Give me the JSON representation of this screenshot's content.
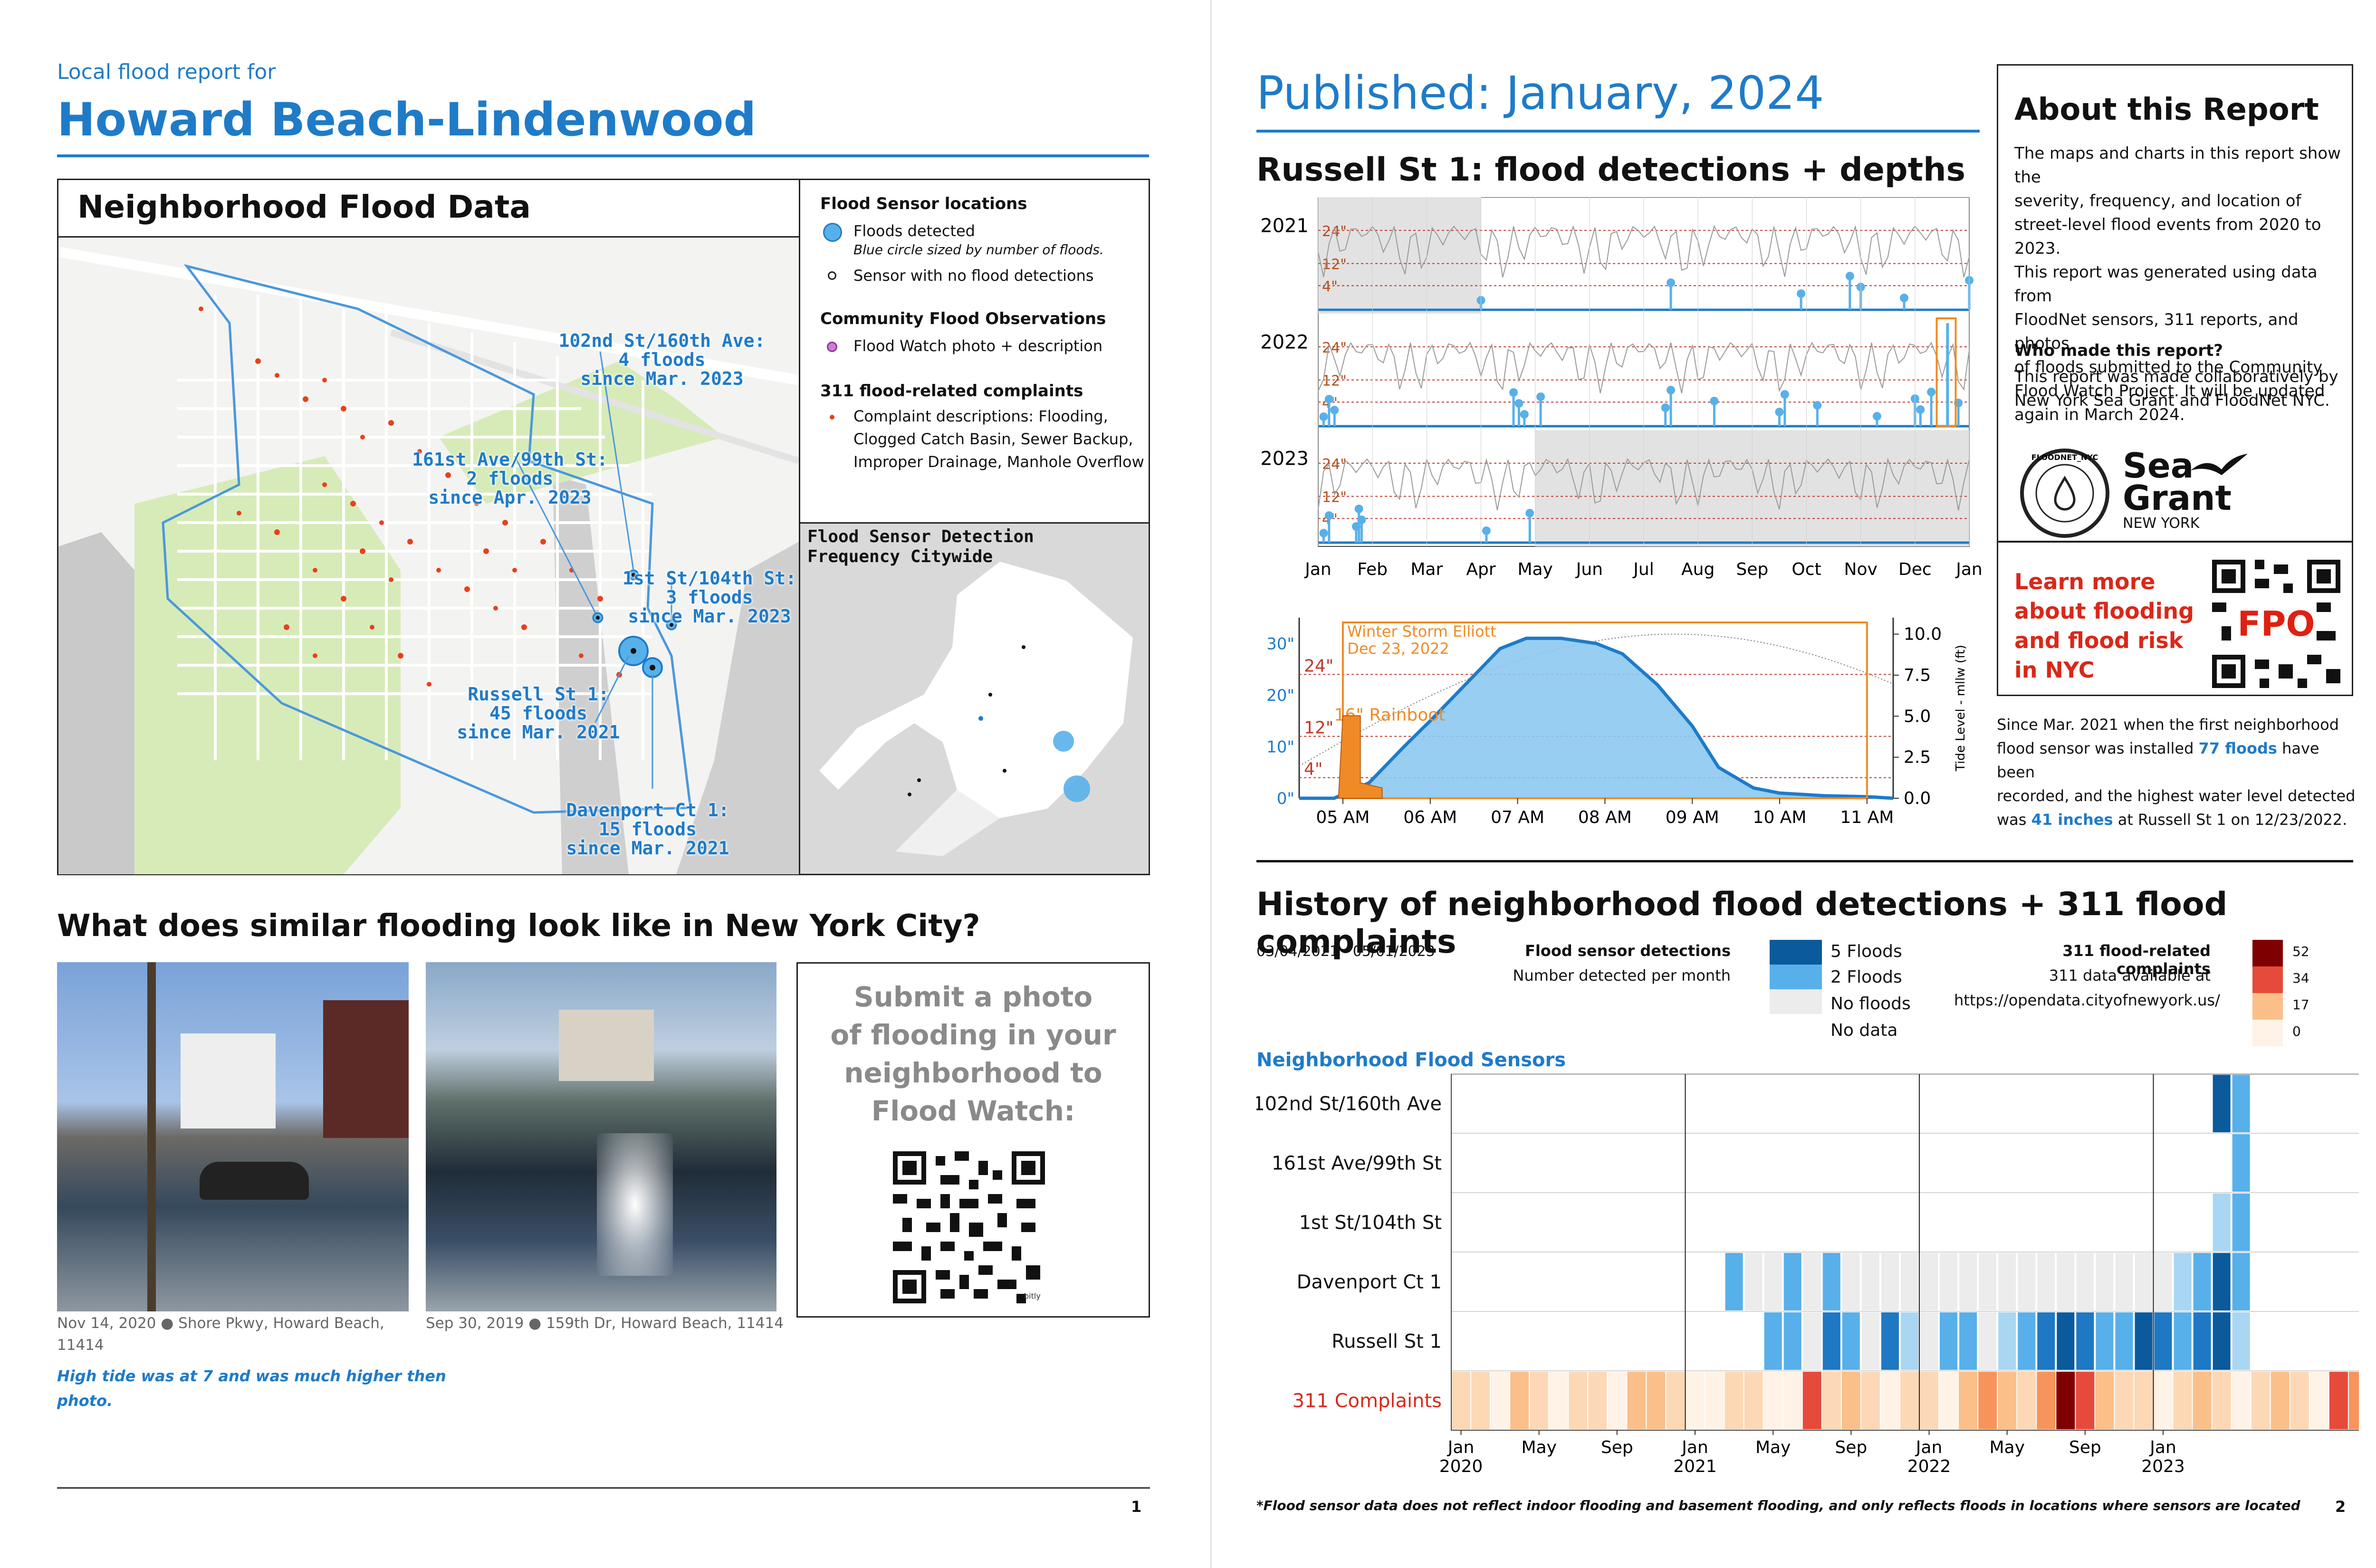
{
  "page1": {
    "kicker": "Local flood report for",
    "title": "Howard Beach-Lindenwood",
    "map_panel_title": "Neighborhood Flood Data",
    "legend": {
      "sensor_heading": "Flood Sensor locations",
      "floods_detected": "Floods detected",
      "floods_note": "Blue circle sized by number of floods.",
      "no_detections": "Sensor with no flood detections",
      "community_heading": "Community Flood Observations",
      "flood_watch": "Flood Watch photo + description",
      "complaints_heading": "311 flood-related complaints",
      "complaints_desc_1": "Complaint descriptions: Flooding,",
      "complaints_desc_2": "Clogged Catch Basin, Sewer Backup,",
      "complaints_desc_3": "Improper Drainage, Manhole Overflow"
    },
    "inset_title_1": "Flood Sensor Detection",
    "inset_title_2": "Frequency Citywide",
    "map_labels": [
      {
        "l1": "102nd St/160th Ave:",
        "l2": "4 floods",
        "l3": "since Mar. 2023"
      },
      {
        "l1": "161st Ave/99th St:",
        "l2": "2 floods",
        "l3": "since Apr. 2023"
      },
      {
        "l1": "1st St/104th St:",
        "l2": "3 floods",
        "l3": "since Mar. 2023"
      },
      {
        "l1": "Russell St 1:",
        "l2": "45 floods",
        "l3": "since Mar. 2021"
      },
      {
        "l1": "Davenport Ct 1:",
        "l2": "15 floods",
        "l3": "since Mar. 2021"
      }
    ],
    "similar_heading": "What does similar flooding look like in New York City?",
    "photo1_caption_1": "Nov 14, 2020 ● Shore Pkwy, Howard Beach,",
    "photo1_caption_2": "11414",
    "photo1_note_1": "High tide was at 7 and was much higher then",
    "photo1_note_2": "photo.",
    "photo2_caption": "Sep 30, 2019 ● 159th Dr, Howard Beach, 11414",
    "submit_1": "Submit a photo",
    "submit_2": "of flooding in your",
    "submit_3": "neighborhood to",
    "submit_4": "Flood Watch:",
    "qr_tag": "bitly",
    "page_number": "1"
  },
  "page2": {
    "published": "Published: January, 2024",
    "sensor_chart_title": "Russell St 1: flood detections + depths",
    "about_title": "About this Report",
    "about_text": [
      "The maps and charts in this report show the",
      "severity, frequency, and location of",
      "street-level flood events from 2020 to 2023.",
      "This report was generated using data from",
      "FloodNet sensors, 311 reports, and photos",
      "of floods submitted to the Community",
      "Flood Watch Project. It will be updated",
      "again in March 2024."
    ],
    "who_heading": "Who made this report?",
    "who_text_1": "This report was made collaboratively by",
    "who_text_2": "New York Sea Grant and FloodNet NYC.",
    "floodnet_logo": "FLOODNET_NYC",
    "seagrant_1": "Sea",
    "seagrant_2": "Grant",
    "seagrant_3": "NEW YORK",
    "learn_1": "Learn more",
    "learn_2": "about flooding",
    "learn_3": "and flood risk",
    "learn_4": "in NYC",
    "fpo": "FPO",
    "since_text": [
      {
        "pre": "Since Mar. 2021 when the first neighborhood",
        "hl": "",
        "post": ""
      },
      {
        "pre": "flood sensor was installed ",
        "hl": "77 floods",
        "post": " have been"
      },
      {
        "pre": "recorded, and the highest water level detected",
        "hl": "",
        "post": ""
      },
      {
        "pre": "was ",
        "hl": "41 inches",
        "post": " at Russell St 1 on 12/23/2022."
      }
    ],
    "history_title": "History of neighborhood flood detections + 311 flood complaints",
    "date_range": "03/04/2021 - 05/01/2023",
    "sensor_legend_heading": "Flood sensor detections",
    "sensor_legend_sub": "Number detected per month",
    "sensor_legend_items": [
      "5 Floods",
      "2 Floods",
      "No floods",
      "No data"
    ],
    "complaint_legend_heading": "311 flood-related complaints",
    "complaint_legend_sub_1": "311 data available at",
    "complaint_legend_sub_2": "https://opendata.cityofnewyork.us/",
    "complaint_legend_values": [
      "52",
      "34",
      "17",
      "0"
    ],
    "sensors_subheading": "Neighborhood Flood Sensors",
    "footnote": "*Flood sensor data does not reflect indoor flooding and basement flooding, and only reflects floods in locations where sensors are located",
    "page_number": "2"
  },
  "colors": {
    "brand_blue": "#1f7bc8",
    "flood_red": "#e8401c",
    "sensor_dark": "#0a5a9c",
    "sensor_light": "#58b0ea",
    "no_floods": "#ececec",
    "complaint_max": "#7f0000",
    "storm_orange": "#f08a24"
  },
  "chart_data": [
    {
      "type": "line",
      "title": "Russell St 1: flood detections + depths",
      "rows": [
        "2021",
        "2022",
        "2023"
      ],
      "x_tick_labels": [
        "Jan",
        "Feb",
        "Mar",
        "Apr",
        "May",
        "Jun",
        "Jul",
        "Aug",
        "Sep",
        "Oct",
        "Nov",
        "Dec",
        "Jan"
      ],
      "depth_guides": [
        "24\"",
        "12\"",
        "4\""
      ],
      "no_data_spans": [
        {
          "row": "2021",
          "from_month": 0,
          "to_month": 3
        },
        {
          "row": "2023",
          "from_month": 4,
          "to_month": 12
        }
      ],
      "flood_events_months": {
        "2021": [
          3.0,
          6.5,
          8.9,
          9.8,
          10.0,
          10.8,
          12.0
        ],
        "2022": [
          0.1,
          0.2,
          0.3,
          3.6,
          3.7,
          3.8,
          4.1,
          6.4,
          6.5,
          7.3,
          8.5,
          8.6,
          9.2,
          10.3,
          11.0,
          11.1,
          11.3,
          11.8
        ],
        "2023": [
          0.1,
          0.2,
          0.7,
          0.75,
          0.8,
          3.1,
          3.9
        ]
      }
    },
    {
      "type": "area",
      "title": "",
      "annotation_1": "Winter Storm Elliott",
      "annotation_2": "Dec 23, 2022",
      "rainboot_label": "16\" Rainboot",
      "x_tick_labels": [
        "05 AM",
        "06 AM",
        "07 AM",
        "08 AM",
        "09 AM",
        "10 AM",
        "11 AM"
      ],
      "y_left_ticks": [
        "0\"",
        "10\"",
        "20\"",
        "30\""
      ],
      "y_right_label": "Tide Level - mllw (ft)",
      "y_right_ticks": [
        "0.0",
        "2.5",
        "5.0",
        "7.5",
        "10.0"
      ],
      "depth_guides": [
        "24\"",
        "12\"",
        "4\""
      ],
      "x_hours": [
        4.5,
        4.9,
        5.3,
        5.7,
        6.0,
        6.4,
        6.8,
        7.1,
        7.5,
        7.9,
        8.2,
        8.6,
        9.0,
        9.3,
        9.7,
        10.0,
        10.5,
        11.0,
        11.3
      ],
      "depth_inches": [
        0,
        0,
        3,
        10,
        15,
        22,
        29,
        31,
        31,
        30,
        28,
        22,
        14,
        6,
        2,
        1,
        0.5,
        0.3,
        0
      ],
      "ylim_left": [
        0,
        35
      ],
      "ylim_right": [
        0,
        11
      ]
    },
    {
      "type": "heatmap",
      "title": "History of neighborhood flood detections + 311 flood complaints",
      "rows": [
        "102nd St/160th Ave",
        "161st Ave/99th St",
        "1st St/104th St",
        "Davenport Ct 1",
        "Russell St 1",
        "311 Complaints"
      ],
      "x_tick_labels": [
        "Jan\n2020",
        "May",
        "Sep",
        "Jan\n2021",
        "May",
        "Sep",
        "Jan\n2022",
        "May",
        "Sep",
        "Jan\n2023"
      ],
      "start": "2020-01",
      "months": 48,
      "sensor_levels_from_2021_03": {
        "102nd St/160th Ave": [
          null,
          null,
          null,
          null,
          null,
          null,
          null,
          null,
          null,
          null,
          null,
          null,
          null,
          null,
          null,
          null,
          null,
          null,
          null,
          null,
          null,
          null,
          null,
          null,
          null,
          5,
          2
        ],
        "161st Ave/99th St": [
          null,
          null,
          null,
          null,
          null,
          null,
          null,
          null,
          null,
          null,
          null,
          null,
          null,
          null,
          null,
          null,
          null,
          null,
          null,
          null,
          null,
          null,
          null,
          null,
          null,
          null,
          2
        ],
        "1st St/104th St": [
          null,
          null,
          null,
          null,
          null,
          null,
          null,
          null,
          null,
          null,
          null,
          null,
          null,
          null,
          null,
          null,
          null,
          null,
          null,
          null,
          null,
          null,
          null,
          null,
          null,
          1,
          2
        ],
        "Davenport Ct 1": [
          3,
          0,
          0,
          2,
          0,
          3,
          0,
          0,
          0,
          0,
          0,
          0,
          0,
          0,
          0,
          0,
          0,
          0,
          0,
          0,
          0,
          0,
          0,
          1,
          3,
          5,
          2
        ],
        "Russell St 1": [
          null,
          null,
          2,
          2,
          0,
          4,
          2,
          0,
          4,
          1,
          0,
          2,
          3,
          0,
          1,
          2,
          4,
          5,
          4,
          2,
          3,
          5,
          4,
          3,
          4,
          5,
          1
        ]
      },
      "complaints_per_month": [
        6,
        4,
        3,
        8,
        5,
        3,
        6,
        4,
        3,
        7,
        8,
        4,
        2,
        3,
        5,
        6,
        3,
        2,
        25,
        4,
        8,
        5,
        3,
        6,
        4,
        3,
        8,
        14,
        9,
        4,
        18,
        52,
        28,
        7,
        4,
        6,
        3,
        5,
        8,
        4,
        3,
        6,
        12,
        4,
        3,
        35,
        20,
        6
      ]
    }
  ]
}
